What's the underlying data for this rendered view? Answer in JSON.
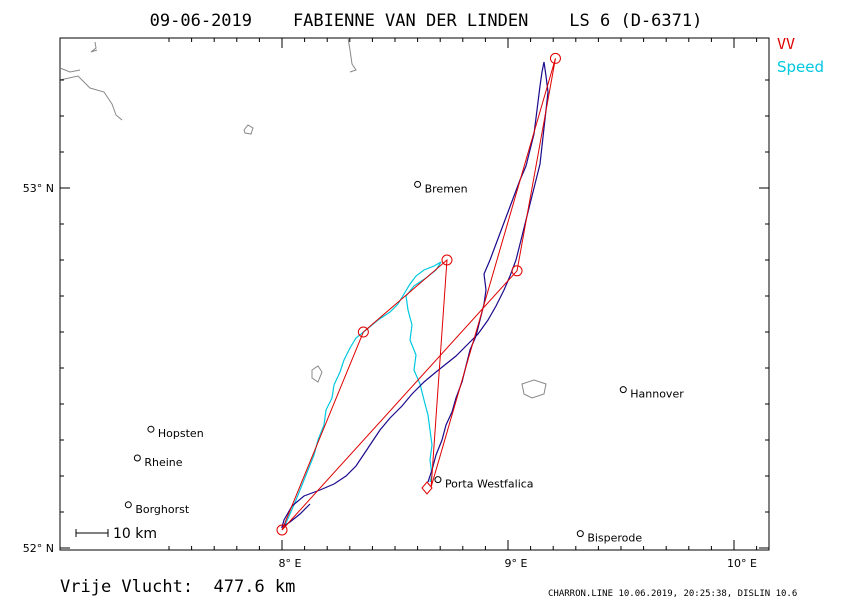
{
  "title": "09-06-2019    FABIENNE VAN DER LINDEN    LS 6 (D-6371)",
  "legend": {
    "vv": "VV",
    "speed": "Speed"
  },
  "axes": {
    "x_ticks": [
      {
        "label": "8° E",
        "lon": 8.0
      },
      {
        "label": "9° E",
        "lon": 9.0
      },
      {
        "label": "10° E",
        "lon": 10.0
      }
    ],
    "y_ticks": [
      {
        "label": "53° N",
        "lat": 53.0
      },
      {
        "label": "52° N",
        "lat": 52.0
      }
    ]
  },
  "cities": [
    {
      "name": "Bremen",
      "lon": 8.6,
      "lat": 53.01
    },
    {
      "name": "Hannover",
      "lon": 9.51,
      "lat": 52.44
    },
    {
      "name": "Hopsten",
      "lon": 7.42,
      "lat": 52.33
    },
    {
      "name": "Rheine",
      "lon": 7.36,
      "lat": 52.25
    },
    {
      "name": "Borghorst",
      "lon": 7.32,
      "lat": 52.12
    },
    {
      "name": "Bisperode",
      "lon": 9.32,
      "lat": 52.04
    },
    {
      "name": "Porta Westfalica",
      "lon": 8.69,
      "lat": 52.19
    }
  ],
  "vv_turnpoints": [
    {
      "lon": 8.66,
      "lat": 52.17
    },
    {
      "lon": 9.21,
      "lat": 53.36
    },
    {
      "lon": 9.04,
      "lat": 52.77
    },
    {
      "lon": 8.0,
      "lat": 52.05
    },
    {
      "lon": 8.36,
      "lat": 52.6
    },
    {
      "lon": 8.73,
      "lat": 52.8
    },
    {
      "lon": 8.66,
      "lat": 52.17
    }
  ],
  "scale_label": "10 km",
  "distance_label": "Vrije Vlucht:  477.6 km",
  "footer": "CHARRON.LINE 10.06.2019, 20:25:38, DISLIN 10.6",
  "colors": {
    "track_vv": "#1a0a8c",
    "track_speed": "#00c8e0",
    "turnpoint": "#e00000",
    "coast": "#888888"
  }
}
